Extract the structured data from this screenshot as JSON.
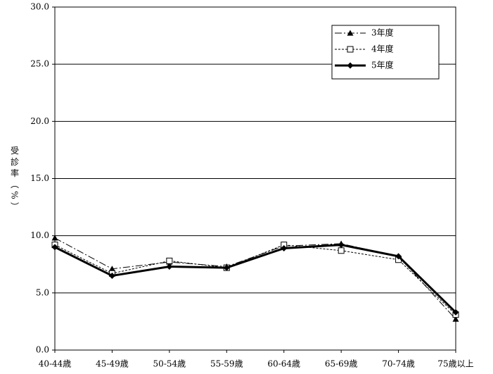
{
  "chart_data": {
    "type": "line",
    "y_label": "受診率（%）",
    "categories": [
      "40-44歳",
      "45-49歳",
      "50-54歳",
      "55-59歳",
      "60-64歳",
      "65-69歳",
      "70-74歳",
      "75歳以上"
    ],
    "series": [
      {
        "name": "3年度",
        "color": "#000000",
        "dash": "10,3,2,3",
        "width": 1,
        "marker": "triangle",
        "values": [
          9.8,
          7.1,
          7.7,
          7.3,
          9.1,
          9.3,
          8.2,
          2.7
        ]
      },
      {
        "name": "4年度",
        "color": "#000000",
        "dash": "3,2",
        "width": 1,
        "marker": "square",
        "values": [
          9.2,
          6.7,
          7.8,
          7.2,
          9.2,
          8.7,
          7.9,
          3.1
        ]
      },
      {
        "name": "5年度",
        "color": "#000000",
        "dash": "none",
        "width": 3,
        "marker": "diamond",
        "values": [
          9.0,
          6.5,
          7.3,
          7.2,
          8.9,
          9.2,
          8.2,
          3.3
        ]
      }
    ],
    "ylim": [
      0,
      30
    ],
    "yticks": [
      {
        "value": 0,
        "label": "0.0"
      },
      {
        "value": 5,
        "label": "5.0"
      },
      {
        "value": 10,
        "label": "10.0"
      },
      {
        "value": 15,
        "label": "15.0"
      },
      {
        "value": 20,
        "label": "20.0"
      },
      {
        "value": 25,
        "label": "25.0"
      },
      {
        "value": 30,
        "label": "30.0"
      }
    ],
    "grid": true
  }
}
